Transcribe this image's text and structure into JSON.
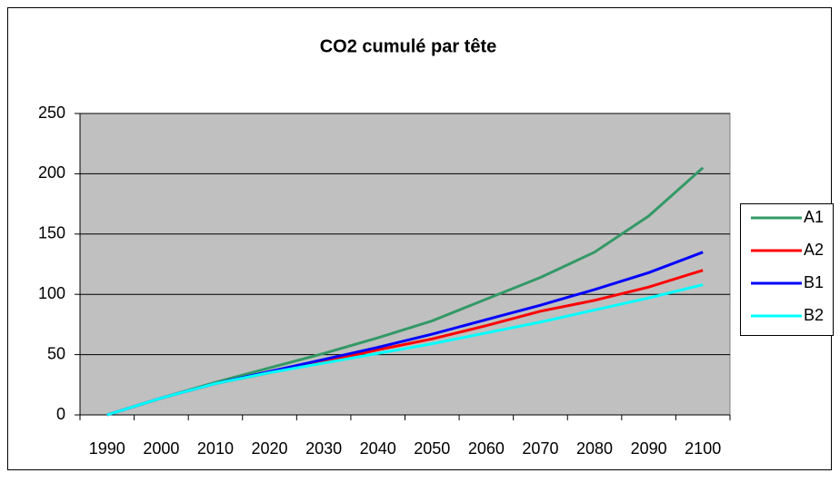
{
  "chart_data": {
    "type": "line",
    "title": "CO2 cumulé par tête",
    "categories": [
      "1990",
      "2000",
      "2010",
      "2020",
      "2030",
      "2040",
      "2050",
      "2060",
      "2070",
      "2080",
      "2090",
      "2100"
    ],
    "series": [
      {
        "name": "A1",
        "color": "#339966",
        "values": [
          0,
          14,
          27,
          39,
          51,
          64,
          78,
          96,
          114,
          135,
          165,
          205
        ]
      },
      {
        "name": "A2",
        "color": "#ff0000",
        "values": [
          0,
          14,
          26,
          35,
          44,
          54,
          63,
          74,
          86,
          95,
          106,
          120
        ]
      },
      {
        "name": "B1",
        "color": "#0000ff",
        "values": [
          0,
          14,
          26,
          36,
          46,
          56,
          67,
          79,
          91,
          104,
          118,
          135
        ]
      },
      {
        "name": "B2",
        "color": "#00ffff",
        "values": [
          0,
          14,
          26,
          35,
          43,
          51,
          59,
          68,
          77,
          87,
          97,
          108
        ]
      }
    ],
    "ylim": [
      0,
      250
    ],
    "yticks": [
      0,
      50,
      100,
      150,
      200,
      250
    ],
    "grid": true,
    "legend": "right"
  }
}
